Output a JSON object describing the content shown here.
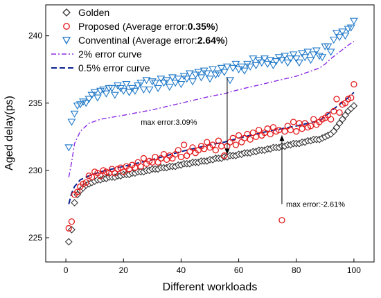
{
  "chart_data": {
    "type": "scatter",
    "title": "",
    "xlabel": "Different workloads",
    "ylabel": "Aged delay(ps)",
    "xlim": [
      -7,
      107
    ],
    "ylim": [
      223.2,
      242.3
    ],
    "xticks": [
      0,
      20,
      40,
      60,
      80,
      100
    ],
    "yticks": [
      225,
      230,
      235,
      240
    ],
    "grid": false,
    "legend_position": "top-left",
    "x": [
      1,
      2,
      3,
      4,
      5,
      6,
      7,
      8,
      9,
      10,
      11,
      12,
      13,
      14,
      15,
      16,
      17,
      18,
      19,
      20,
      21,
      22,
      23,
      24,
      25,
      26,
      27,
      28,
      29,
      30,
      31,
      32,
      33,
      34,
      35,
      36,
      37,
      38,
      39,
      40,
      41,
      42,
      43,
      44,
      45,
      46,
      47,
      48,
      49,
      50,
      51,
      52,
      53,
      54,
      55,
      56,
      57,
      58,
      59,
      60,
      61,
      62,
      63,
      64,
      65,
      66,
      67,
      68,
      69,
      70,
      71,
      72,
      73,
      74,
      75,
      76,
      77,
      78,
      79,
      80,
      81,
      82,
      83,
      84,
      85,
      86,
      87,
      88,
      89,
      90,
      91,
      92,
      93,
      94,
      95,
      96,
      97,
      98,
      99,
      100
    ],
    "series": [
      {
        "name": "Golden",
        "marker": "diamond",
        "color": "#333333",
        "values": [
          224.7,
          225.6,
          227.6,
          228.2,
          228.5,
          228.7,
          228.9,
          229.0,
          229.1,
          229.2,
          229.3,
          229.3,
          229.4,
          229.4,
          229.5,
          229.5,
          229.5,
          229.6,
          229.6,
          229.7,
          229.7,
          229.7,
          229.8,
          229.8,
          229.9,
          229.9,
          229.9,
          230.0,
          230.0,
          230.1,
          230.1,
          230.1,
          230.2,
          230.2,
          230.2,
          230.3,
          230.3,
          230.3,
          230.4,
          230.4,
          230.5,
          230.5,
          230.5,
          230.6,
          230.6,
          230.6,
          230.7,
          230.7,
          230.7,
          230.8,
          230.8,
          230.9,
          230.9,
          230.9,
          231.0,
          231.0,
          231.1,
          231.1,
          231.1,
          231.2,
          231.2,
          231.3,
          231.3,
          231.3,
          231.4,
          231.4,
          231.5,
          231.5,
          231.5,
          231.6,
          231.6,
          231.7,
          231.7,
          231.7,
          231.8,
          231.8,
          231.9,
          231.9,
          232.0,
          232.0,
          232.0,
          232.1,
          232.1,
          232.2,
          232.2,
          232.3,
          232.3,
          232.3,
          232.4,
          232.5,
          232.6,
          232.7,
          232.9,
          233.2,
          233.5,
          233.8,
          234.1,
          234.4,
          234.6,
          234.8
        ]
      },
      {
        "name": "Proposed (Average error:0.35%)",
        "marker": "circle",
        "color": "#e41a1c",
        "values": [
          225.7,
          226.2,
          228.2,
          228.4,
          228.8,
          229.0,
          229.1,
          229.6,
          229.5,
          229.9,
          229.8,
          229.6,
          230.0,
          229.9,
          229.8,
          230.1,
          229.8,
          230.1,
          230.2,
          229.9,
          230.3,
          230.1,
          230.4,
          230.2,
          230.6,
          230.3,
          230.9,
          230.5,
          230.7,
          230.6,
          231.0,
          230.6,
          230.9,
          231.2,
          230.8,
          231.1,
          230.9,
          231.2,
          231.5,
          231.0,
          231.9,
          231.1,
          231.4,
          231.7,
          231.3,
          231.5,
          231.8,
          231.6,
          232.1,
          231.7,
          231.9,
          231.5,
          232.2,
          231.8,
          231.1,
          231.8,
          232.1,
          232.4,
          231.9,
          232.6,
          232.1,
          232.4,
          232.7,
          232.3,
          232.8,
          232.5,
          233.0,
          232.6,
          232.8,
          233.1,
          232.7,
          233.2,
          232.9,
          233.0,
          226.3,
          232.9,
          233.3,
          233.0,
          233.6,
          232.9,
          233.5,
          233.1,
          233.5,
          233.2,
          233.3,
          233.8,
          233.4,
          233.6,
          233.8,
          233.9,
          234.1,
          233.8,
          234.4,
          235.3,
          234.3,
          234.9,
          235.0,
          235.3,
          235.4,
          236.4
        ]
      },
      {
        "name": "Conventinal (Average error:2.64%)",
        "marker": "triangle-down",
        "color": "#1f78c8",
        "values": [
          231.7,
          233.6,
          234.2,
          234.8,
          234.9,
          235.1,
          235.0,
          235.3,
          235.6,
          235.8,
          235.4,
          235.9,
          236.0,
          235.7,
          236.1,
          236.1,
          235.6,
          236.3,
          236.1,
          235.9,
          236.4,
          235.8,
          236.1,
          235.9,
          236.3,
          236.5,
          236.0,
          236.7,
          236.0,
          236.6,
          236.5,
          236.1,
          236.8,
          236.5,
          236.7,
          236.2,
          236.9,
          236.5,
          236.8,
          236.4,
          237.0,
          236.8,
          237.2,
          236.6,
          237.1,
          237.3,
          236.9,
          237.4,
          237.2,
          236.8,
          237.5,
          237.1,
          237.2,
          237.6,
          237.3,
          237.7,
          236.7,
          237.6,
          237.9,
          237.5,
          237.7,
          237.4,
          237.9,
          237.7,
          238.3,
          237.8,
          238.2,
          238.0,
          238.3,
          237.9,
          238.2,
          237.8,
          238.1,
          238.4,
          238.2,
          238.5,
          238.0,
          238.3,
          238.6,
          238.3,
          238.0,
          238.7,
          238.4,
          238.8,
          238.2,
          238.6,
          238.9,
          238.5,
          238.4,
          239.2,
          239.2,
          238.8,
          239.7,
          240.2,
          239.9,
          240.3,
          240.0,
          240.5,
          240.6,
          241.1
        ]
      }
    ],
    "curves": [
      {
        "name": "2% error curve",
        "style": "dash-dot",
        "color": "#8a2be2",
        "x": [
          1,
          2,
          3,
          5,
          8,
          12,
          20,
          30,
          40,
          50,
          55,
          60,
          70,
          80,
          88,
          90,
          92,
          95,
          98,
          100
        ],
        "values": [
          229.5,
          230.6,
          232.0,
          232.9,
          233.5,
          233.8,
          234.1,
          234.5,
          235.0,
          235.5,
          235.7,
          236.0,
          236.5,
          237.0,
          237.6,
          237.9,
          238.3,
          238.8,
          239.3,
          239.6
        ]
      },
      {
        "name": "0.5% error curve",
        "style": "dashed",
        "color": "#0a1f8f",
        "x": [
          1,
          2,
          3,
          5,
          8,
          12,
          20,
          30,
          40,
          50,
          55,
          60,
          70,
          80,
          88,
          90,
          92,
          95,
          98,
          100
        ],
        "values": [
          227.5,
          228.3,
          228.8,
          229.3,
          229.6,
          229.9,
          230.3,
          230.8,
          231.4,
          231.9,
          232.1,
          232.4,
          232.9,
          233.3,
          233.7,
          234.0,
          234.4,
          234.9,
          235.4,
          235.8
        ]
      }
    ],
    "annotations": [
      {
        "text": "max error:3.09%",
        "x": 56,
        "y_from": 236.9,
        "y_to": 231.2,
        "label_x": 26,
        "label_y": 233.6
      },
      {
        "text": "max error:-2.61%",
        "x": 75,
        "y_from": 227.5,
        "y_to": 232.6,
        "label_x": 75.5,
        "label_y": 227.5
      }
    ]
  },
  "legend_labels": [
    {
      "text": "Golden"
    },
    {
      "prefix": "Proposed (Average error:",
      "bold": "0.35%",
      "suffix": ")"
    },
    {
      "prefix": "Conventinal (Average error:",
      "bold": "2.64%",
      "suffix": ")"
    },
    {
      "text": "2% error curve"
    },
    {
      "text": "0.5% error curve"
    }
  ]
}
